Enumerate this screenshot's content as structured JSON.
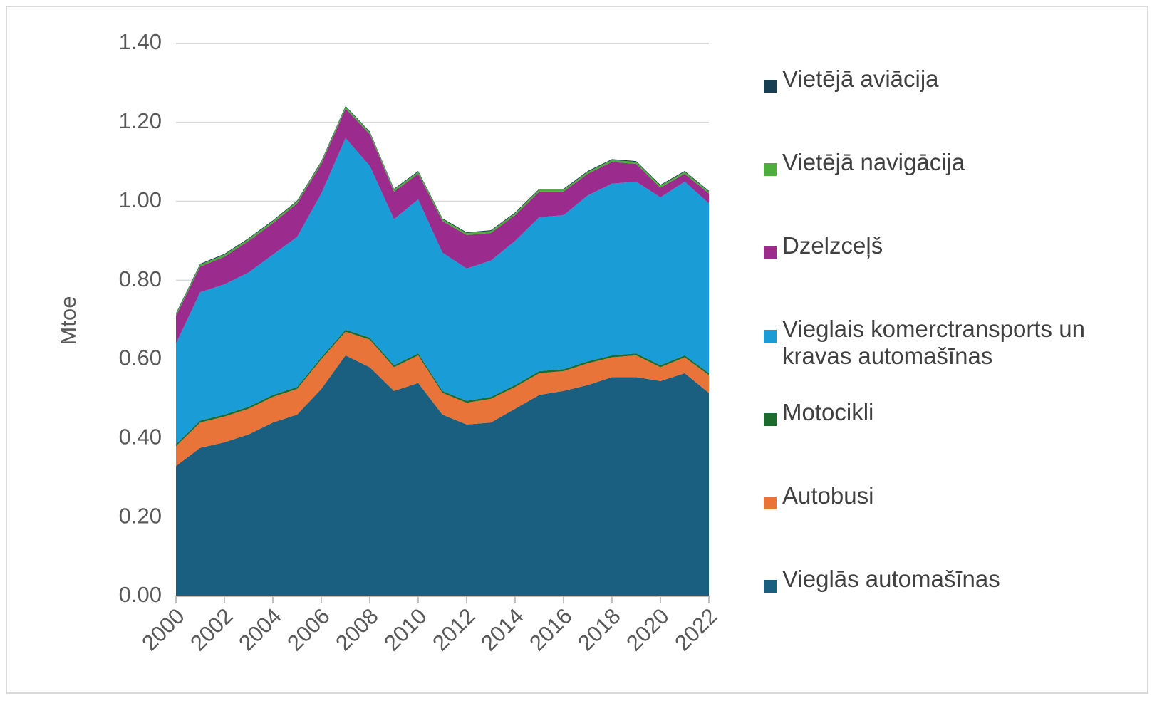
{
  "chart_data": {
    "type": "stacked_area",
    "y_label": "Mtoe",
    "x": [
      2000,
      2001,
      2002,
      2003,
      2004,
      2005,
      2006,
      2007,
      2008,
      2009,
      2010,
      2011,
      2012,
      2013,
      2014,
      2015,
      2016,
      2017,
      2018,
      2019,
      2020,
      2021,
      2022
    ],
    "xlim": [
      2000,
      2022
    ],
    "xticks": [
      2000,
      2002,
      2004,
      2006,
      2008,
      2010,
      2012,
      2014,
      2016,
      2018,
      2020,
      2022
    ],
    "ylim": [
      0,
      1.4
    ],
    "yticks": [
      {
        "value": 0,
        "label": "0.00"
      },
      {
        "value": 0.2,
        "label": "0.20"
      },
      {
        "value": 0.4,
        "label": "0.40"
      },
      {
        "value": 0.6,
        "label": "0.60"
      },
      {
        "value": 0.8,
        "label": "0.80"
      },
      {
        "value": 1,
        "label": "1.00"
      },
      {
        "value": 1.2,
        "label": "1.20"
      },
      {
        "value": 1.4,
        "label": "1.40"
      }
    ],
    "grid": true,
    "legend": "right",
    "series": [
      {
        "name": "Vieglās automašīnas",
        "color": "#1a5e80",
        "values": [
          0.33,
          0.376,
          0.39,
          0.41,
          0.44,
          0.46,
          0.525,
          0.61,
          0.58,
          0.52,
          0.54,
          0.46,
          0.435,
          0.44,
          0.475,
          0.51,
          0.52,
          0.535,
          0.555,
          0.555,
          0.545,
          0.565,
          0.515
        ]
      },
      {
        "name": "Autobusi",
        "color": "#e8743a",
        "values": [
          0.05,
          0.064,
          0.065,
          0.065,
          0.065,
          0.065,
          0.075,
          0.06,
          0.07,
          0.06,
          0.07,
          0.055,
          0.055,
          0.06,
          0.055,
          0.055,
          0.05,
          0.055,
          0.05,
          0.055,
          0.035,
          0.04,
          0.045
        ]
      },
      {
        "name": "Motocikli",
        "color": "#1e6b2e",
        "values": [
          0.005,
          0.005,
          0.005,
          0.005,
          0.005,
          0.005,
          0.005,
          0.005,
          0.005,
          0.005,
          0.005,
          0.005,
          0.005,
          0.005,
          0.005,
          0.005,
          0.005,
          0.005,
          0.005,
          0.005,
          0.005,
          0.005,
          0.005
        ]
      },
      {
        "name": "Vieglais komerctransports un kravas automašīnas",
        "color": "#1a9cd6",
        "values": [
          0.255,
          0.325,
          0.33,
          0.34,
          0.355,
          0.38,
          0.415,
          0.485,
          0.435,
          0.37,
          0.39,
          0.35,
          0.335,
          0.345,
          0.365,
          0.39,
          0.39,
          0.42,
          0.435,
          0.435,
          0.425,
          0.44,
          0.43
        ]
      },
      {
        "name": "Dzelzceļš",
        "color": "#9c2b8e",
        "values": [
          0.07,
          0.065,
          0.07,
          0.08,
          0.08,
          0.085,
          0.075,
          0.075,
          0.08,
          0.07,
          0.065,
          0.08,
          0.085,
          0.07,
          0.065,
          0.065,
          0.06,
          0.055,
          0.055,
          0.045,
          0.025,
          0.02,
          0.025
        ]
      },
      {
        "name": "Vietējā navigācija",
        "color": "#4caf3a",
        "values": [
          0.005,
          0.005,
          0.005,
          0.005,
          0.005,
          0.005,
          0.005,
          0.005,
          0.005,
          0.005,
          0.005,
          0.005,
          0.005,
          0.005,
          0.005,
          0.005,
          0.005,
          0.005,
          0.005,
          0.005,
          0.005,
          0.005,
          0.005
        ]
      },
      {
        "name": "Vietējā aviācija",
        "color": "#163f52",
        "values": [
          0.002,
          0.002,
          0.002,
          0.002,
          0.002,
          0.002,
          0.002,
          0.002,
          0.002,
          0.002,
          0.002,
          0.002,
          0.002,
          0.002,
          0.002,
          0.002,
          0.002,
          0.002,
          0.002,
          0.002,
          0.002,
          0.002,
          0.002
        ]
      }
    ]
  }
}
